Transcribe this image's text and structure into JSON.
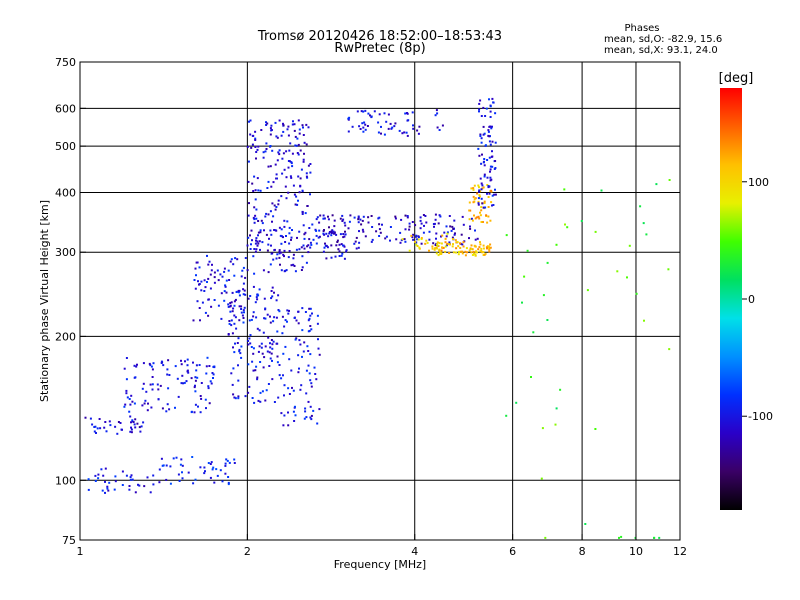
{
  "header": {
    "title_line1": "Tromsø 20120426 18:52:00–18:53:43",
    "title_line2": "RwPretec (8p)"
  },
  "phases_box": {
    "heading": "Phases",
    "line_o": "mean, sd,O: -82.9, 15.6",
    "line_x": "mean, sd,X:  93.1, 24.0"
  },
  "colorbar": {
    "unit_label": "[deg]",
    "range": [
      -180,
      180
    ],
    "tick_labels": [
      "100",
      "0",
      "-100"
    ],
    "tick_values": [
      100,
      0,
      -100
    ],
    "stops": [
      "#000000",
      "#3a0066",
      "#2a00c8",
      "#0030ff",
      "#0090ff",
      "#00e0e8",
      "#00e060",
      "#40ff00",
      "#e8f000",
      "#ffc000",
      "#ff6000",
      "#ff0000"
    ]
  },
  "chart_data": {
    "type": "scatter",
    "title": "Tromsø 20120426 18:52:00–18:53:43",
    "subtitle": "RwPretec (8p)",
    "xlabel": "Frequency [MHz]",
    "ylabel": "Stationary phase Virtual Height [km]",
    "xscale": "log",
    "yscale": "log",
    "xlim": [
      1,
      12
    ],
    "ylim": [
      75,
      750
    ],
    "x_ticks": [
      1,
      2,
      4,
      6,
      8,
      10,
      12
    ],
    "x_tick_labels": [
      "1",
      "2",
      "4",
      "6",
      "8",
      "10",
      "12"
    ],
    "y_ticks": [
      75,
      100,
      200,
      300,
      400,
      500,
      600,
      750
    ],
    "y_tick_labels": [
      "75",
      "100",
      "200",
      "300",
      "400",
      "500",
      "600",
      "750"
    ],
    "grid_x": [
      2,
      4,
      6,
      8,
      10
    ],
    "grid_y": [
      100,
      200,
      300,
      400,
      500,
      600
    ],
    "color_scale": "phase [deg]",
    "traces": [
      {
        "x_range": [
          1.0,
          1.3
        ],
        "y": 130,
        "y_spread": 6,
        "phase": -105,
        "n": 40
      },
      {
        "x_range": [
          1.0,
          1.35
        ],
        "y": 100,
        "y_spread": 6,
        "phase": -100,
        "n": 35
      },
      {
        "x_range": [
          1.2,
          1.75
        ],
        "y": 160,
        "y_spread": 22,
        "phase": -100,
        "n": 110
      },
      {
        "x_range": [
          1.35,
          1.9
        ],
        "y": 105,
        "y_spread": 7,
        "phase": -95,
        "n": 50
      },
      {
        "x_range": [
          1.6,
          2.0
        ],
        "y": 255,
        "y_spread": 40,
        "phase": -100,
        "n": 80
      },
      {
        "x_range": [
          1.85,
          2.3
        ],
        "y": 200,
        "y_spread": 55,
        "phase": -100,
        "n": 150
      },
      {
        "x_range": [
          2.0,
          2.6
        ],
        "y": 420,
        "y_spread": 150,
        "phase": -105,
        "n": 220
      },
      {
        "x_range": [
          2.3,
          2.7
        ],
        "y": 180,
        "y_spread": 50,
        "phase": -100,
        "n": 90
      },
      {
        "x_range": [
          2.0,
          3.0
        ],
        "y": 310,
        "y_spread": 25,
        "phase": -105,
        "n": 90
      },
      {
        "x_range": [
          2.6,
          3.2
        ],
        "y": 330,
        "y_spread": 30,
        "phase": -110,
        "n": 60
      },
      {
        "x_range": [
          3.2,
          5.2
        ],
        "y": 335,
        "y_spread": 25,
        "phase": -110,
        "n": 110
      },
      {
        "x_range": [
          3.0,
          4.6
        ],
        "y": 560,
        "y_spread": 35,
        "phase": -105,
        "n": 60
      },
      {
        "x_range": [
          4.3,
          5.5
        ],
        "y": 305,
        "y_spread": 10,
        "phase": 110,
        "n": 90
      },
      {
        "x_range": [
          5.0,
          5.5
        ],
        "y": 380,
        "y_spread": 35,
        "phase": 115,
        "n": 50
      },
      {
        "x_range": [
          5.2,
          5.6
        ],
        "y": 500,
        "y_spread": 130,
        "phase": -100,
        "n": 90
      },
      {
        "x_range": [
          3.8,
          4.8
        ],
        "y": 315,
        "y_spread": 15,
        "phase": 100,
        "n": 25
      },
      {
        "x_range": [
          5.8,
          11.5
        ],
        "y": 250,
        "y_spread": 200,
        "phase": 40,
        "n": 45
      }
    ]
  }
}
